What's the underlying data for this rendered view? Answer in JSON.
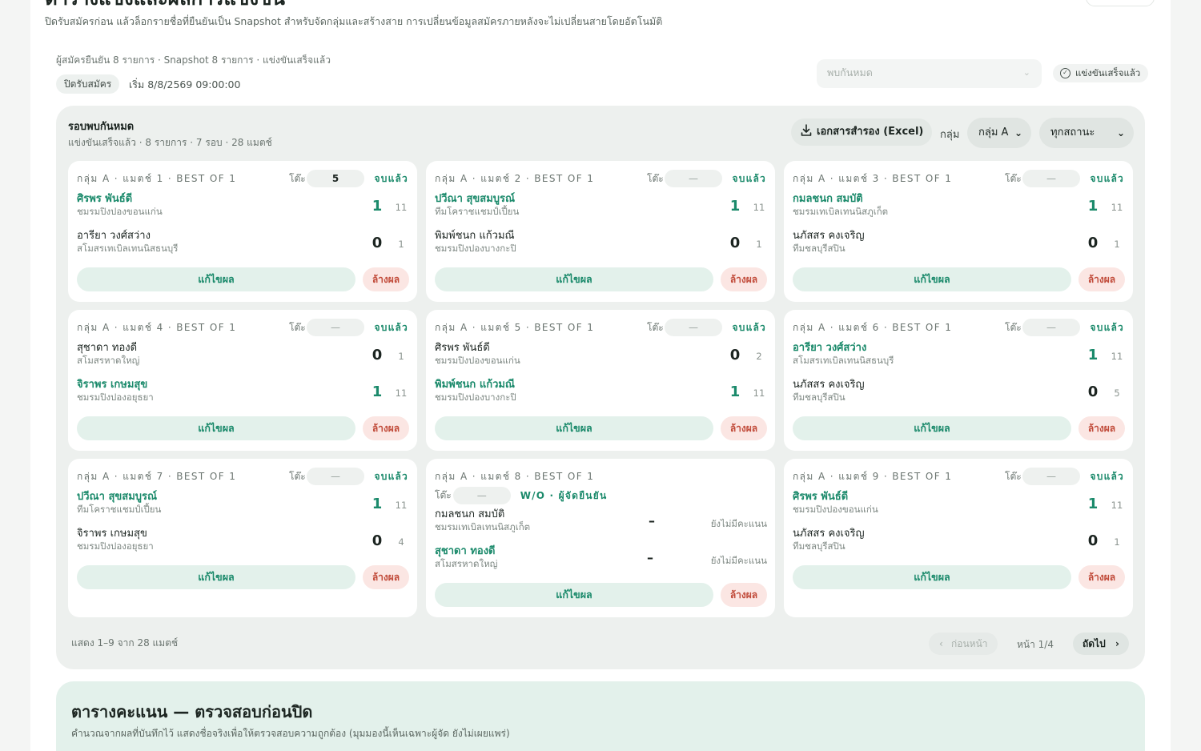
{
  "header": {
    "title": "ตารางแข่งและผลการแข่งขัน",
    "description": "ปิดรับสมัครก่อน แล้วล็อกรายชื่อที่ยืนยันเป็น Snapshot สำหรับจัดกลุ่มและสร้างสาย การเปลี่ยนข้อมูลสมัครภายหลังจะไม่เปลี่ยนสายโดยอัตโนมัติ",
    "top_chip": ""
  },
  "summary": {
    "meta": "ผู้สมัครยืนยัน 8 รายการ · Snapshot 8 รายการ · แข่งขันเสร็จแล้ว",
    "closed_badge": "ปิดรับสมัคร",
    "start": "เริ่ม 8/8/2569 09:00:00",
    "round_placeholder": "พบกันหมด",
    "done_chip": "แข่งขันเสร็จแล้ว"
  },
  "panel": {
    "title": "รอบพบกันหมด",
    "subtitle": "แข่งขันเสร็จแล้ว · 8 รายการ · 7 รอบ · 28 แมตช์",
    "export_label": "เอกสารสำรอง (Excel)",
    "group_label": "กลุ่ม",
    "group_value": "กลุ่ม A",
    "status_value": "ทุกสถานะ",
    "table_label": "โต๊ะ",
    "edit_label": "แก้ไขผล",
    "clear_label": "ล้างผล",
    "footer_info": "แสดง 1–9 จาก 28 แมตช์",
    "prev_label": "ก่อนหน้า",
    "page_label": "หน้า 1/4",
    "next_label": "ถัดไป"
  },
  "matches": [
    {
      "head": "กลุ่ม A · แมตช์ 1 · BEST OF 1",
      "table": "5",
      "status": "จบแล้ว",
      "p1": {
        "name": "ศิรพร พันธ์ดี",
        "club": "ชมรมปิงปองขอนแก่น",
        "score": "1",
        "pts": "11",
        "win": true
      },
      "p2": {
        "name": "อารียา วงศ์สว่าง",
        "club": "สโมสรเทเบิลเทนนิสธนบุรี",
        "score": "0",
        "pts": "1",
        "win": false
      }
    },
    {
      "head": "กลุ่ม A · แมตช์ 2 · BEST OF 1",
      "table": "—",
      "status": "จบแล้ว",
      "p1": {
        "name": "ปวีณา สุขสมบูรณ์",
        "club": "ทีมโคราชแชมป์เปี้ยน",
        "score": "1",
        "pts": "11",
        "win": true
      },
      "p2": {
        "name": "พิมพ์ชนก แก้วมณี",
        "club": "ชมรมปิงปองบางกะปิ",
        "score": "0",
        "pts": "1",
        "win": false
      }
    },
    {
      "head": "กลุ่ม A · แมตช์ 3 · BEST OF 1",
      "table": "—",
      "status": "จบแล้ว",
      "p1": {
        "name": "กมลชนก สมบัติ",
        "club": "ชมรมเทเบิลเทนนิสภูเก็ต",
        "score": "1",
        "pts": "11",
        "win": true
      },
      "p2": {
        "name": "นภัสสร คงเจริญ",
        "club": "ทีมชลบุรีสปิน",
        "score": "0",
        "pts": "1",
        "win": false
      }
    },
    {
      "head": "กลุ่ม A · แมตช์ 4 · BEST OF 1",
      "table": "—",
      "status": "จบแล้ว",
      "p1": {
        "name": "สุชาดา ทองดี",
        "club": "สโมสรหาดใหญ่",
        "score": "0",
        "pts": "1",
        "win": false
      },
      "p2": {
        "name": "จิราพร เกษมสุข",
        "club": "ชมรมปิงปองอยุธยา",
        "score": "1",
        "pts": "11",
        "win": true
      }
    },
    {
      "head": "กลุ่ม A · แมตช์ 5 · BEST OF 1",
      "table": "—",
      "status": "จบแล้ว",
      "p1": {
        "name": "ศิรพร พันธ์ดี",
        "club": "ชมรมปิงปองขอนแก่น",
        "score": "0",
        "pts": "2",
        "win": false
      },
      "p2": {
        "name": "พิมพ์ชนก แก้วมณี",
        "club": "ชมรมปิงปองบางกะปิ",
        "score": "1",
        "pts": "11",
        "win": true
      }
    },
    {
      "head": "กลุ่ม A · แมตช์ 6 · BEST OF 1",
      "table": "—",
      "status": "จบแล้ว",
      "p1": {
        "name": "อารียา วงศ์สว่าง",
        "club": "สโมสรเทเบิลเทนนิสธนบุรี",
        "score": "1",
        "pts": "11",
        "win": true
      },
      "p2": {
        "name": "นภัสสร คงเจริญ",
        "club": "ทีมชลบุรีสปิน",
        "score": "0",
        "pts": "5",
        "win": false
      }
    },
    {
      "head": "กลุ่ม A · แมตช์ 7 · BEST OF 1",
      "table": "—",
      "status": "จบแล้ว",
      "p1": {
        "name": "ปวีณา สุขสมบูรณ์",
        "club": "ทีมโคราชแชมป์เปี้ยน",
        "score": "1",
        "pts": "11",
        "win": true
      },
      "p2": {
        "name": "จิราพร เกษมสุข",
        "club": "ชมรมปิงปองอยุธยา",
        "score": "0",
        "pts": "4",
        "win": false
      }
    },
    {
      "head": "กลุ่ม A · แมตช์ 8 · BEST OF 1",
      "table": "—",
      "status": "W/O · ผู้จัดยืนยัน",
      "p1": {
        "name": "กมลชนก สมบัติ",
        "club": "ชมรมเทเบิลเทนนิสภูเก็ต",
        "score": "–",
        "pts": "ยังไม่มีคะแนน",
        "win": false
      },
      "p2": {
        "name": "สุชาดา ทองดี",
        "club": "สโมสรหาดใหญ่",
        "score": "–",
        "pts": "ยังไม่มีคะแนน",
        "win": true
      }
    },
    {
      "head": "กลุ่ม A · แมตช์ 9 · BEST OF 1",
      "table": "—",
      "status": "จบแล้ว",
      "p1": {
        "name": "ศิรพร พันธ์ดี",
        "club": "ชมรมปิงปองขอนแก่น",
        "score": "1",
        "pts": "11",
        "win": true
      },
      "p2": {
        "name": "นภัสสร คงเจริญ",
        "club": "ทีมชลบุรีสปิน",
        "score": "0",
        "pts": "1",
        "win": false
      }
    }
  ],
  "standings": {
    "title": "ตารางคะแนน — ตรวจสอบก่อนปิด",
    "subtitle": "คำนวณจากผลที่บันทึกไว้ แสดงชื่อจริงเพื่อให้ตรวจสอบความถูกต้อง (มุมมองนี้เห็นเฉพาะผู้จัด ยังไม่เผยแพร่)"
  },
  "colors": {
    "accent": "#1b8a6b",
    "danger": "#c14b3a",
    "panel": "#edf0ee"
  }
}
